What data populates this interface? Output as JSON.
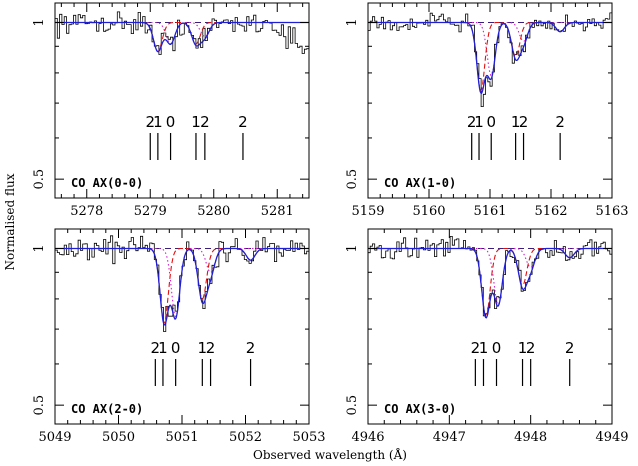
{
  "figure": {
    "ylabel": "Normalised flux",
    "xlabel": "Observed wavelength (Å)"
  },
  "chart_data": [
    {
      "type": "line",
      "label": "CO AX(0-0)",
      "xlim": [
        5277.5,
        5281.5
      ],
      "ylim": [
        0.46,
        1.09
      ],
      "log_y": true,
      "xticks": [
        5278,
        5279,
        5280,
        5281
      ],
      "xtick_labels": [
        "5278",
        "5279",
        "5280",
        "5281"
      ],
      "yticks": [
        0.5,
        1
      ],
      "ytick_labels": [
        "0.5",
        "1"
      ],
      "markers": [
        {
          "x": 5279.0,
          "label": "2"
        },
        {
          "x": 5279.12,
          "label": "1"
        },
        {
          "x": 5279.32,
          "label": "0"
        },
        {
          "x": 5279.72,
          "label": "1"
        },
        {
          "x": 5279.86,
          "label": "2"
        },
        {
          "x": 5280.46,
          "label": "2"
        }
      ],
      "absorption": [
        {
          "x": 5279.12,
          "depth": 0.12,
          "width": 0.07
        },
        {
          "x": 5279.32,
          "depth": 0.09,
          "width": 0.07
        },
        {
          "x": 5279.72,
          "depth": 0.09,
          "width": 0.07
        },
        {
          "x": 5279.86,
          "depth": 0.06,
          "width": 0.07
        }
      ],
      "noise": 0.03
    },
    {
      "type": "line",
      "label": "CO AX(1-0)",
      "xlim": [
        5159,
        5163
      ],
      "ylim": [
        0.46,
        1.09
      ],
      "log_y": true,
      "xticks": [
        5159,
        5160,
        5161,
        5162,
        5163
      ],
      "xtick_labels": [
        "5159",
        "5160",
        "5161",
        "5162",
        "5163"
      ],
      "yticks": [
        0.5,
        1
      ],
      "ytick_labels": [
        "0.5",
        "1"
      ],
      "markers": [
        {
          "x": 5160.7,
          "label": "2"
        },
        {
          "x": 5160.82,
          "label": "1"
        },
        {
          "x": 5161.02,
          "label": "0"
        },
        {
          "x": 5161.42,
          "label": "1"
        },
        {
          "x": 5161.55,
          "label": "2"
        },
        {
          "x": 5162.15,
          "label": "2"
        }
      ],
      "absorption": [
        {
          "x": 5160.85,
          "depth": 0.26,
          "width": 0.07
        },
        {
          "x": 5161.02,
          "depth": 0.21,
          "width": 0.07
        },
        {
          "x": 5161.42,
          "depth": 0.14,
          "width": 0.07
        },
        {
          "x": 5161.55,
          "depth": 0.08,
          "width": 0.07
        },
        {
          "x": 5162.15,
          "depth": 0.04,
          "width": 0.07
        }
      ],
      "noise": 0.025
    },
    {
      "type": "line",
      "label": "CO AX(2-0)",
      "xlim": [
        5049,
        5053
      ],
      "ylim": [
        0.46,
        1.09
      ],
      "log_y": true,
      "xticks": [
        5049,
        5050,
        5051,
        5052,
        5053
      ],
      "xtick_labels": [
        "5049",
        "5050",
        "5051",
        "5052",
        "5053"
      ],
      "yticks": [
        0.5,
        1
      ],
      "ytick_labels": [
        "0.5",
        "1"
      ],
      "markers": [
        {
          "x": 5050.58,
          "label": "2"
        },
        {
          "x": 5050.7,
          "label": "1"
        },
        {
          "x": 5050.9,
          "label": "0"
        },
        {
          "x": 5051.32,
          "label": "1"
        },
        {
          "x": 5051.45,
          "label": "2"
        },
        {
          "x": 5052.08,
          "label": "2"
        }
      ],
      "absorption": [
        {
          "x": 5050.72,
          "depth": 0.28,
          "width": 0.07
        },
        {
          "x": 5050.9,
          "depth": 0.26,
          "width": 0.07
        },
        {
          "x": 5051.32,
          "depth": 0.2,
          "width": 0.07
        },
        {
          "x": 5051.45,
          "depth": 0.1,
          "width": 0.07
        },
        {
          "x": 5052.08,
          "depth": 0.05,
          "width": 0.07
        }
      ],
      "noise": 0.035
    },
    {
      "type": "line",
      "label": "CO AX(3-0)",
      "xlim": [
        4946,
        4949
      ],
      "ylim": [
        0.46,
        1.09
      ],
      "log_y": true,
      "xticks": [
        4946,
        4947,
        4948,
        4949
      ],
      "xtick_labels": [
        "4946",
        "4947",
        "4948",
        "4949"
      ],
      "yticks": [
        0.5,
        1
      ],
      "ytick_labels": [
        "0.5",
        "1"
      ],
      "markers": [
        {
          "x": 4947.32,
          "label": "2"
        },
        {
          "x": 4947.42,
          "label": "1"
        },
        {
          "x": 4947.58,
          "label": "0"
        },
        {
          "x": 4947.9,
          "label": "1"
        },
        {
          "x": 4948.0,
          "label": "2"
        },
        {
          "x": 4948.48,
          "label": "2"
        }
      ],
      "absorption": [
        {
          "x": 4947.45,
          "depth": 0.26,
          "width": 0.055
        },
        {
          "x": 4947.6,
          "depth": 0.22,
          "width": 0.055
        },
        {
          "x": 4947.9,
          "depth": 0.15,
          "width": 0.055
        },
        {
          "x": 4948.0,
          "depth": 0.08,
          "width": 0.055
        },
        {
          "x": 4948.48,
          "depth": 0.04,
          "width": 0.055
        }
      ],
      "noise": 0.03
    }
  ],
  "colors": {
    "data": "#000000",
    "fit": "#1f1fd6",
    "component_dashed": "#e01010",
    "component_dotted": "#d020d0",
    "continuum": "#3a1e7a"
  }
}
